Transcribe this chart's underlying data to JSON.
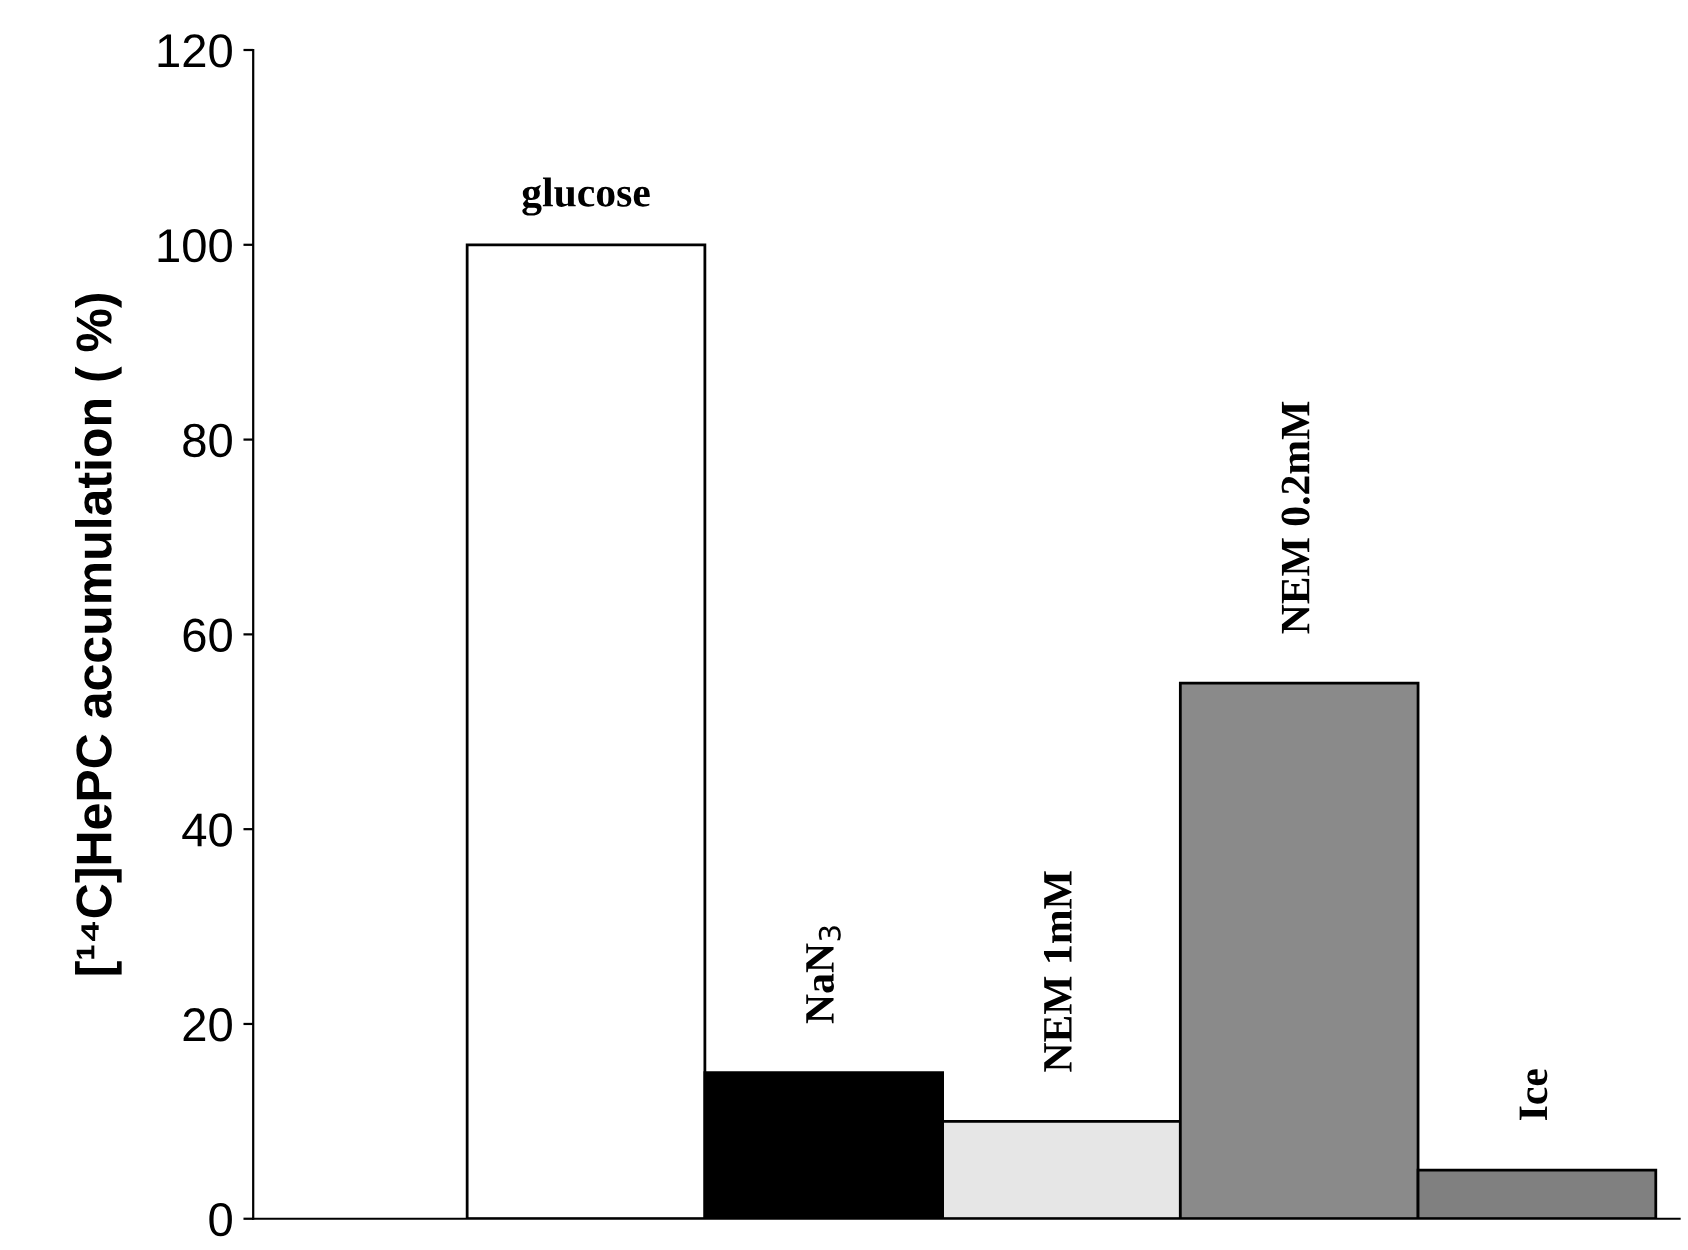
{
  "chart_data": {
    "type": "bar",
    "ylabel": "[¹⁴C]HePC accumulation ( %)",
    "categories": [
      "glucose",
      "NaN$_{3}$",
      "NEM 1mM",
      "NEM 0.2mM",
      "Ice"
    ],
    "values": [
      100,
      15,
      10,
      55,
      5
    ],
    "colors": [
      "#ffffff",
      "#000000",
      "#e6e6e6",
      "#8a8a8a",
      "#808080"
    ],
    "ylim": [
      0,
      120
    ],
    "yticks": [
      0,
      20,
      40,
      60,
      80,
      100,
      120
    ],
    "grid": false,
    "legend": false,
    "tick_labels": "y"
  }
}
